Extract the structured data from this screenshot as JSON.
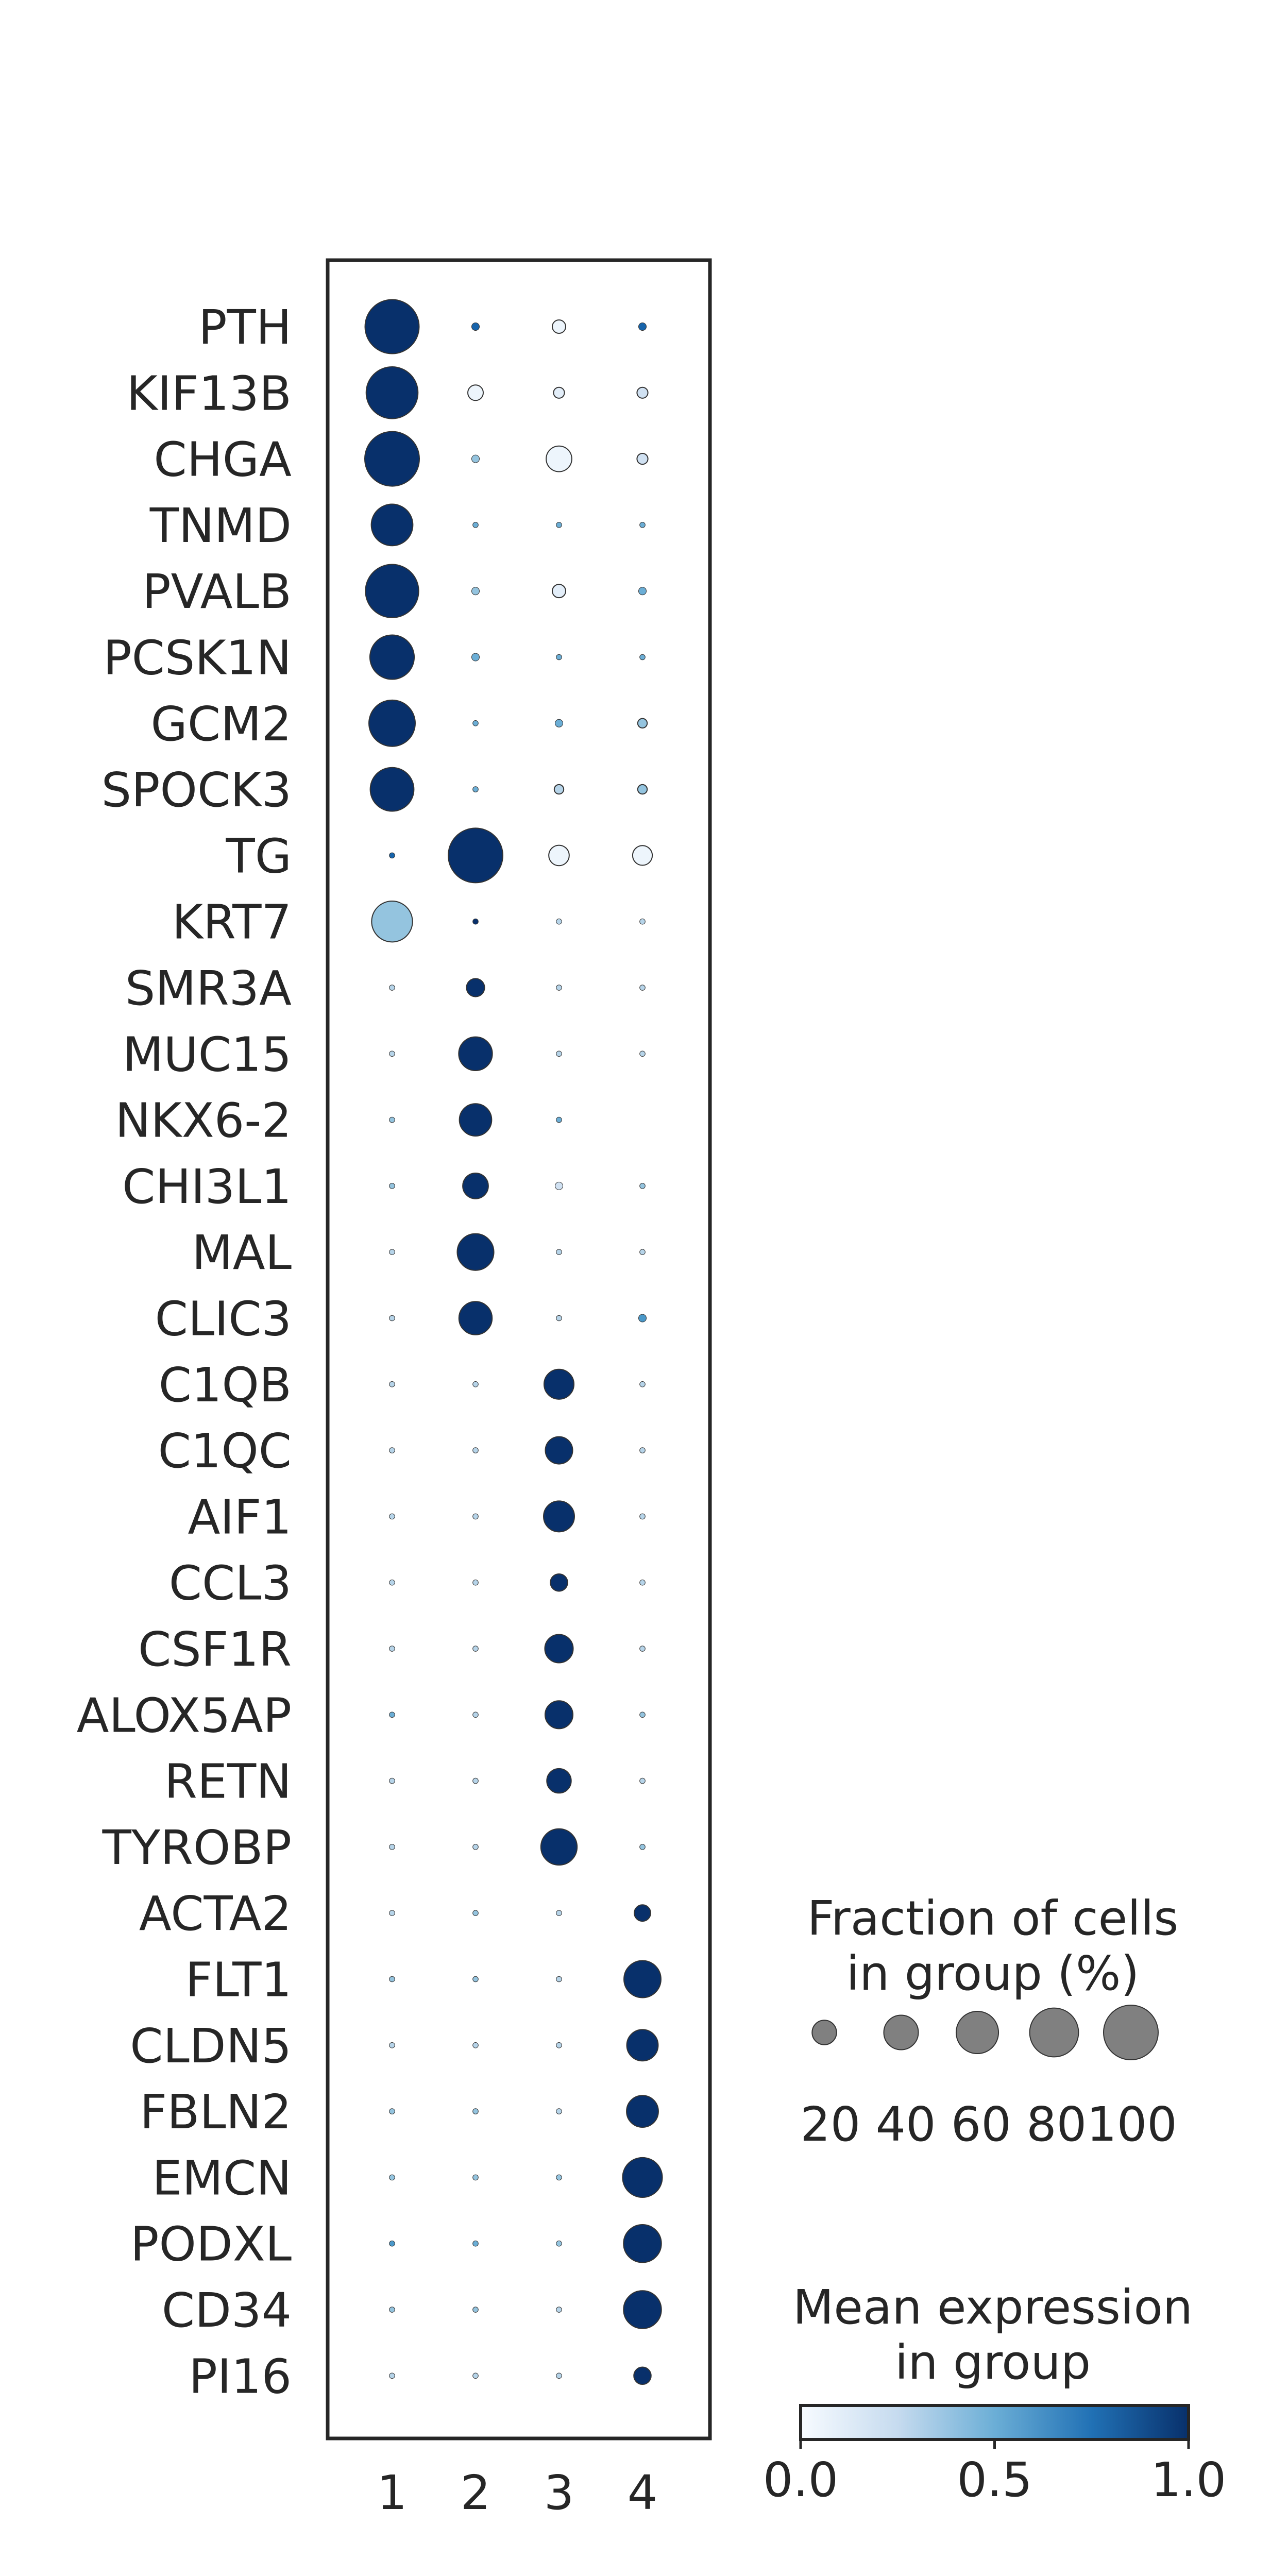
{
  "chart_data": {
    "type": "dotplot",
    "categories_x": [
      "1",
      "2",
      "3",
      "4"
    ],
    "genes": [
      "PTH",
      "KIF13B",
      "CHGA",
      "TNMD",
      "PVALB",
      "PCSK1N",
      "GCM2",
      "SPOCK3",
      "TG",
      "KRT7",
      "SMR3A",
      "MUC15",
      "NKX6-2",
      "CHI3L1",
      "MAL",
      "CLIC3",
      "C1QB",
      "C1QC",
      "AIF1",
      "CCL3",
      "CSF1R",
      "ALOX5AP",
      "RETN",
      "TYROBP",
      "ACTA2",
      "FLT1",
      "CLDN5",
      "FBLN2",
      "EMCN",
      "PODXL",
      "CD34",
      "PI16"
    ],
    "fraction": [
      [
        98,
        2,
        6,
        2
      ],
      [
        90,
        8,
        4,
        4
      ],
      [
        100,
        2,
        22,
        4
      ],
      [
        58,
        1,
        1,
        1
      ],
      [
        95,
        2,
        6,
        2
      ],
      [
        66,
        2,
        1,
        1
      ],
      [
        72,
        1,
        2,
        3
      ],
      [
        64,
        1,
        3,
        3
      ],
      [
        1,
        100,
        14,
        13
      ],
      [
        56,
        1,
        1,
        1
      ],
      [
        1,
        11,
        1,
        1
      ],
      [
        1,
        38,
        1,
        1
      ],
      [
        1,
        35,
        1,
        0
      ],
      [
        1,
        22,
        2,
        1
      ],
      [
        1,
        45,
        1,
        1
      ],
      [
        1,
        37,
        1,
        2
      ],
      [
        1,
        1,
        30,
        1
      ],
      [
        1,
        1,
        25,
        1
      ],
      [
        1,
        1,
        32,
        1
      ],
      [
        1,
        1,
        10,
        1
      ],
      [
        1,
        1,
        27,
        1
      ],
      [
        1,
        1,
        26,
        1
      ],
      [
        1,
        1,
        20,
        1
      ],
      [
        1,
        1,
        44,
        1
      ],
      [
        1,
        1,
        1,
        9
      ],
      [
        1,
        1,
        1,
        46
      ],
      [
        1,
        1,
        1,
        33
      ],
      [
        1,
        1,
        1,
        34
      ],
      [
        1,
        1,
        1,
        53
      ],
      [
        1,
        1,
        1,
        48
      ],
      [
        1,
        1,
        1,
        48
      ],
      [
        1,
        1,
        1,
        10
      ]
    ],
    "mean_expression": [
      [
        1.0,
        0.8,
        0.05,
        0.8
      ],
      [
        1.0,
        0.05,
        0.1,
        0.2
      ],
      [
        1.0,
        0.4,
        0.05,
        0.2
      ],
      [
        1.0,
        0.5,
        0.5,
        0.5
      ],
      [
        1.0,
        0.4,
        0.1,
        0.5
      ],
      [
        1.0,
        0.5,
        0.5,
        0.5
      ],
      [
        1.0,
        0.5,
        0.5,
        0.4
      ],
      [
        1.0,
        0.5,
        0.3,
        0.4
      ],
      [
        0.8,
        1.0,
        0.05,
        0.05
      ],
      [
        0.4,
        1.0,
        0.3,
        0.3
      ],
      [
        0.3,
        1.0,
        0.3,
        0.3
      ],
      [
        0.3,
        1.0,
        0.3,
        0.3
      ],
      [
        0.4,
        1.0,
        0.5,
        0.3
      ],
      [
        0.4,
        1.0,
        0.2,
        0.4
      ],
      [
        0.3,
        1.0,
        0.3,
        0.3
      ],
      [
        0.3,
        1.0,
        0.3,
        0.6
      ],
      [
        0.3,
        0.3,
        1.0,
        0.3
      ],
      [
        0.3,
        0.3,
        1.0,
        0.3
      ],
      [
        0.3,
        0.3,
        1.0,
        0.3
      ],
      [
        0.3,
        0.3,
        1.0,
        0.3
      ],
      [
        0.3,
        0.3,
        1.0,
        0.3
      ],
      [
        0.5,
        0.3,
        1.0,
        0.4
      ],
      [
        0.3,
        0.3,
        1.0,
        0.3
      ],
      [
        0.3,
        0.3,
        1.0,
        0.4
      ],
      [
        0.3,
        0.4,
        0.3,
        1.0
      ],
      [
        0.4,
        0.4,
        0.3,
        1.0
      ],
      [
        0.3,
        0.3,
        0.3,
        1.0
      ],
      [
        0.4,
        0.4,
        0.3,
        1.0
      ],
      [
        0.4,
        0.4,
        0.4,
        1.0
      ],
      [
        0.6,
        0.5,
        0.4,
        1.0
      ],
      [
        0.4,
        0.4,
        0.3,
        1.0
      ],
      [
        0.3,
        0.3,
        0.3,
        1.0
      ]
    ],
    "size_legend": {
      "title_line1": "Fraction of cells",
      "title_line2": "in group (%)",
      "values": [
        20,
        40,
        60,
        80,
        100
      ],
      "label": "20 40 60 80100"
    },
    "color_legend": {
      "title_line1": "Mean expression",
      "title_line2": "in group",
      "ticks": [
        "0.0",
        "0.5",
        "1.0"
      ],
      "range": [
        0.0,
        1.0
      ],
      "colormap": "Blues",
      "color_low": "#f7fbff",
      "color_mid": "#4292c6",
      "color_high": "#08306b"
    },
    "grid": false
  }
}
